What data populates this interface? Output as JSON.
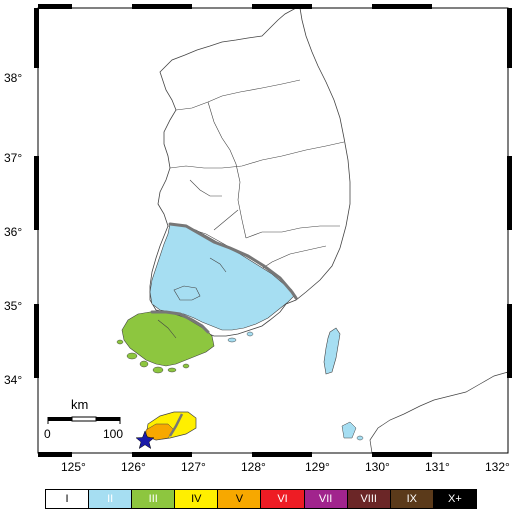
{
  "map": {
    "lon_labels": [
      "125°",
      "126°",
      "127°",
      "128°",
      "129°",
      "130°",
      "131°",
      "132°"
    ],
    "lat_labels": [
      "34°",
      "35°",
      "36°",
      "37°",
      "38°"
    ],
    "scale_bar": {
      "unit": "km",
      "start": "0",
      "end": "100"
    },
    "epicenter": {
      "lon": 126.3,
      "lat": 33.2,
      "marker": "star-icon",
      "color": "#1a1aa8"
    }
  },
  "legend": {
    "items": [
      {
        "label": "I",
        "color": "#ffffff",
        "text_color": "#000000"
      },
      {
        "label": "II",
        "color": "#a6def2",
        "text_color": "#ffffff"
      },
      {
        "label": "III",
        "color": "#8dc63f",
        "text_color": "#ffffff"
      },
      {
        "label": "IV",
        "color": "#ffef00",
        "text_color": "#000000"
      },
      {
        "label": "V",
        "color": "#f7a800",
        "text_color": "#000000"
      },
      {
        "label": "VI",
        "color": "#ee1c24",
        "text_color": "#ffffff"
      },
      {
        "label": "VII",
        "color": "#a1248d",
        "text_color": "#ffffff"
      },
      {
        "label": "VIII",
        "color": "#6b2627",
        "text_color": "#ffffff"
      },
      {
        "label": "IX",
        "color": "#5b3a1a",
        "text_color": "#ffffff"
      },
      {
        "label": "X+",
        "color": "#000000",
        "text_color": "#ffffff"
      }
    ]
  }
}
